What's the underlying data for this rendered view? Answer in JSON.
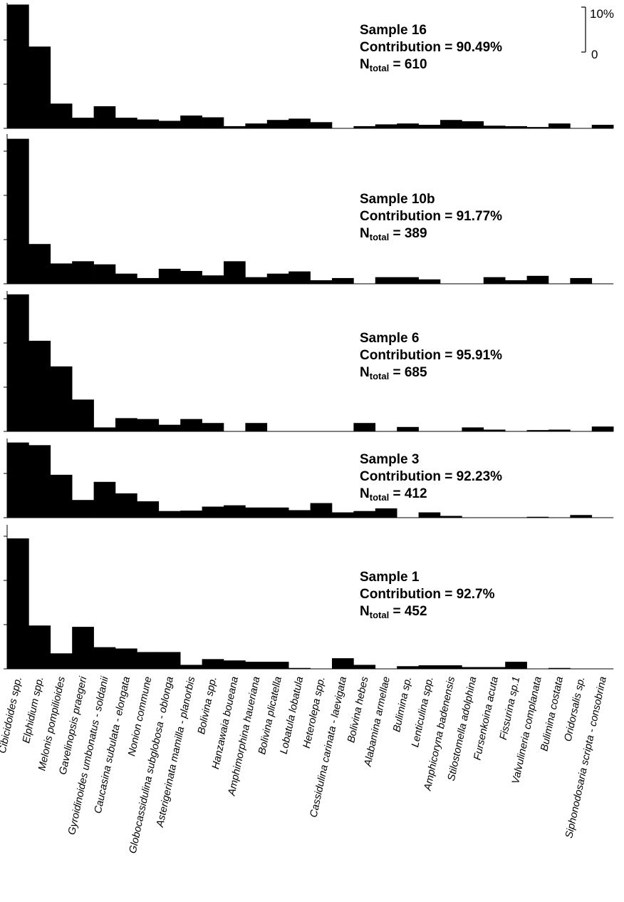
{
  "chart_data": {
    "type": "bar",
    "ylabel": "",
    "ylim_percent": [
      0,
      28
    ],
    "scale_bar": {
      "top_label": "10%",
      "bottom_label": "0",
      "value_percent": 10
    },
    "categories": [
      "Cibicidoides spp.",
      "Elphidium spp.",
      "Melonis pompilioides",
      "Gavelinopsis praegeri",
      "Gyroidinoides umbonatus - soldanii",
      "Caucasina subulata - elongata",
      "Nonion commune",
      "Globocassidulina subglobosa - oblonga",
      "Asterigerinata mamilla - planorbis",
      "Bolivina spp.",
      "Hanzawaia boueana",
      "Amphimorphina haueriana",
      "Bolivina plicatella",
      "Lobatula lobatula",
      "Heterolepa spp.",
      "Cassidulina carinata - laevigata",
      "Bolivina hebes",
      "Alabamina armellae",
      "Bulimina sp.",
      "Lenticulina spp.",
      "Amphicoryna badenensis",
      "Stilostomella adolphina",
      "Fursenkoina acuta",
      "Fissurina sp.1",
      "Valvulineria complanata",
      "Bulimina costata",
      "Oridorsalis sp.",
      "Siphonodosaria scripta - consobrina"
    ],
    "series": [
      {
        "title": "Sample 16",
        "contribution": "Contribution = 90.49%",
        "n_prefix": "N",
        "n_sub": "total",
        "n_suffix": " = 610",
        "values": [
          28.0,
          18.5,
          5.6,
          2.4,
          5.0,
          2.4,
          2.0,
          1.7,
          2.9,
          2.5,
          0.5,
          1.1,
          1.9,
          2.2,
          1.4,
          0,
          0.5,
          0.9,
          1.1,
          0.8,
          1.9,
          1.6,
          0.6,
          0.5,
          0.3,
          1.1,
          0,
          0.8
        ]
      },
      {
        "title": "Sample 10b",
        "contribution": "Contribution = 91.77%",
        "n_prefix": "N",
        "n_sub": "total",
        "n_suffix": " = 389",
        "values": [
          32.8,
          9.0,
          4.6,
          5.1,
          4.4,
          2.3,
          1.3,
          3.4,
          2.9,
          1.9,
          5.1,
          1.5,
          2.3,
          2.8,
          0.8,
          1.3,
          0,
          1.5,
          1.5,
          1.0,
          0,
          0,
          1.5,
          0.8,
          1.8,
          0,
          1.3,
          0
        ]
      },
      {
        "title": "Sample 6",
        "contribution": "Contribution = 95.91%",
        "n_prefix": "N",
        "n_sub": "total",
        "n_suffix": " = 685",
        "values": [
          31.0,
          20.5,
          14.7,
          7.2,
          0.9,
          3.0,
          2.8,
          1.5,
          2.8,
          1.9,
          0,
          1.9,
          0,
          0,
          0,
          0,
          1.9,
          0,
          1.0,
          0,
          0,
          0.9,
          0.4,
          0,
          0.3,
          0.4,
          0,
          1.1
        ]
      },
      {
        "title": "Sample 3",
        "contribution": "Contribution = 92.23%",
        "n_prefix": "N",
        "n_sub": "total",
        "n_suffix": " = 412",
        "values": [
          17.0,
          16.4,
          9.7,
          4.0,
          8.1,
          5.5,
          3.7,
          1.5,
          1.6,
          2.5,
          2.8,
          2.3,
          2.3,
          1.7,
          3.3,
          1.2,
          1.5,
          2.1,
          0,
          1.2,
          0.4,
          0,
          0,
          0,
          0.2,
          0,
          0.6,
          0
        ]
      },
      {
        "title": "Sample 1",
        "contribution": "Contribution = 92.7%",
        "n_prefix": "N",
        "n_sub": "total",
        "n_suffix": " = 452",
        "values": [
          29.5,
          9.8,
          3.5,
          9.5,
          4.9,
          4.6,
          3.8,
          3.8,
          0.9,
          2.2,
          1.9,
          1.6,
          1.6,
          0.2,
          0,
          2.4,
          0.9,
          0,
          0.6,
          0.8,
          0.8,
          0.4,
          0.4,
          1.6,
          0,
          0.2,
          0,
          0
        ]
      }
    ]
  }
}
